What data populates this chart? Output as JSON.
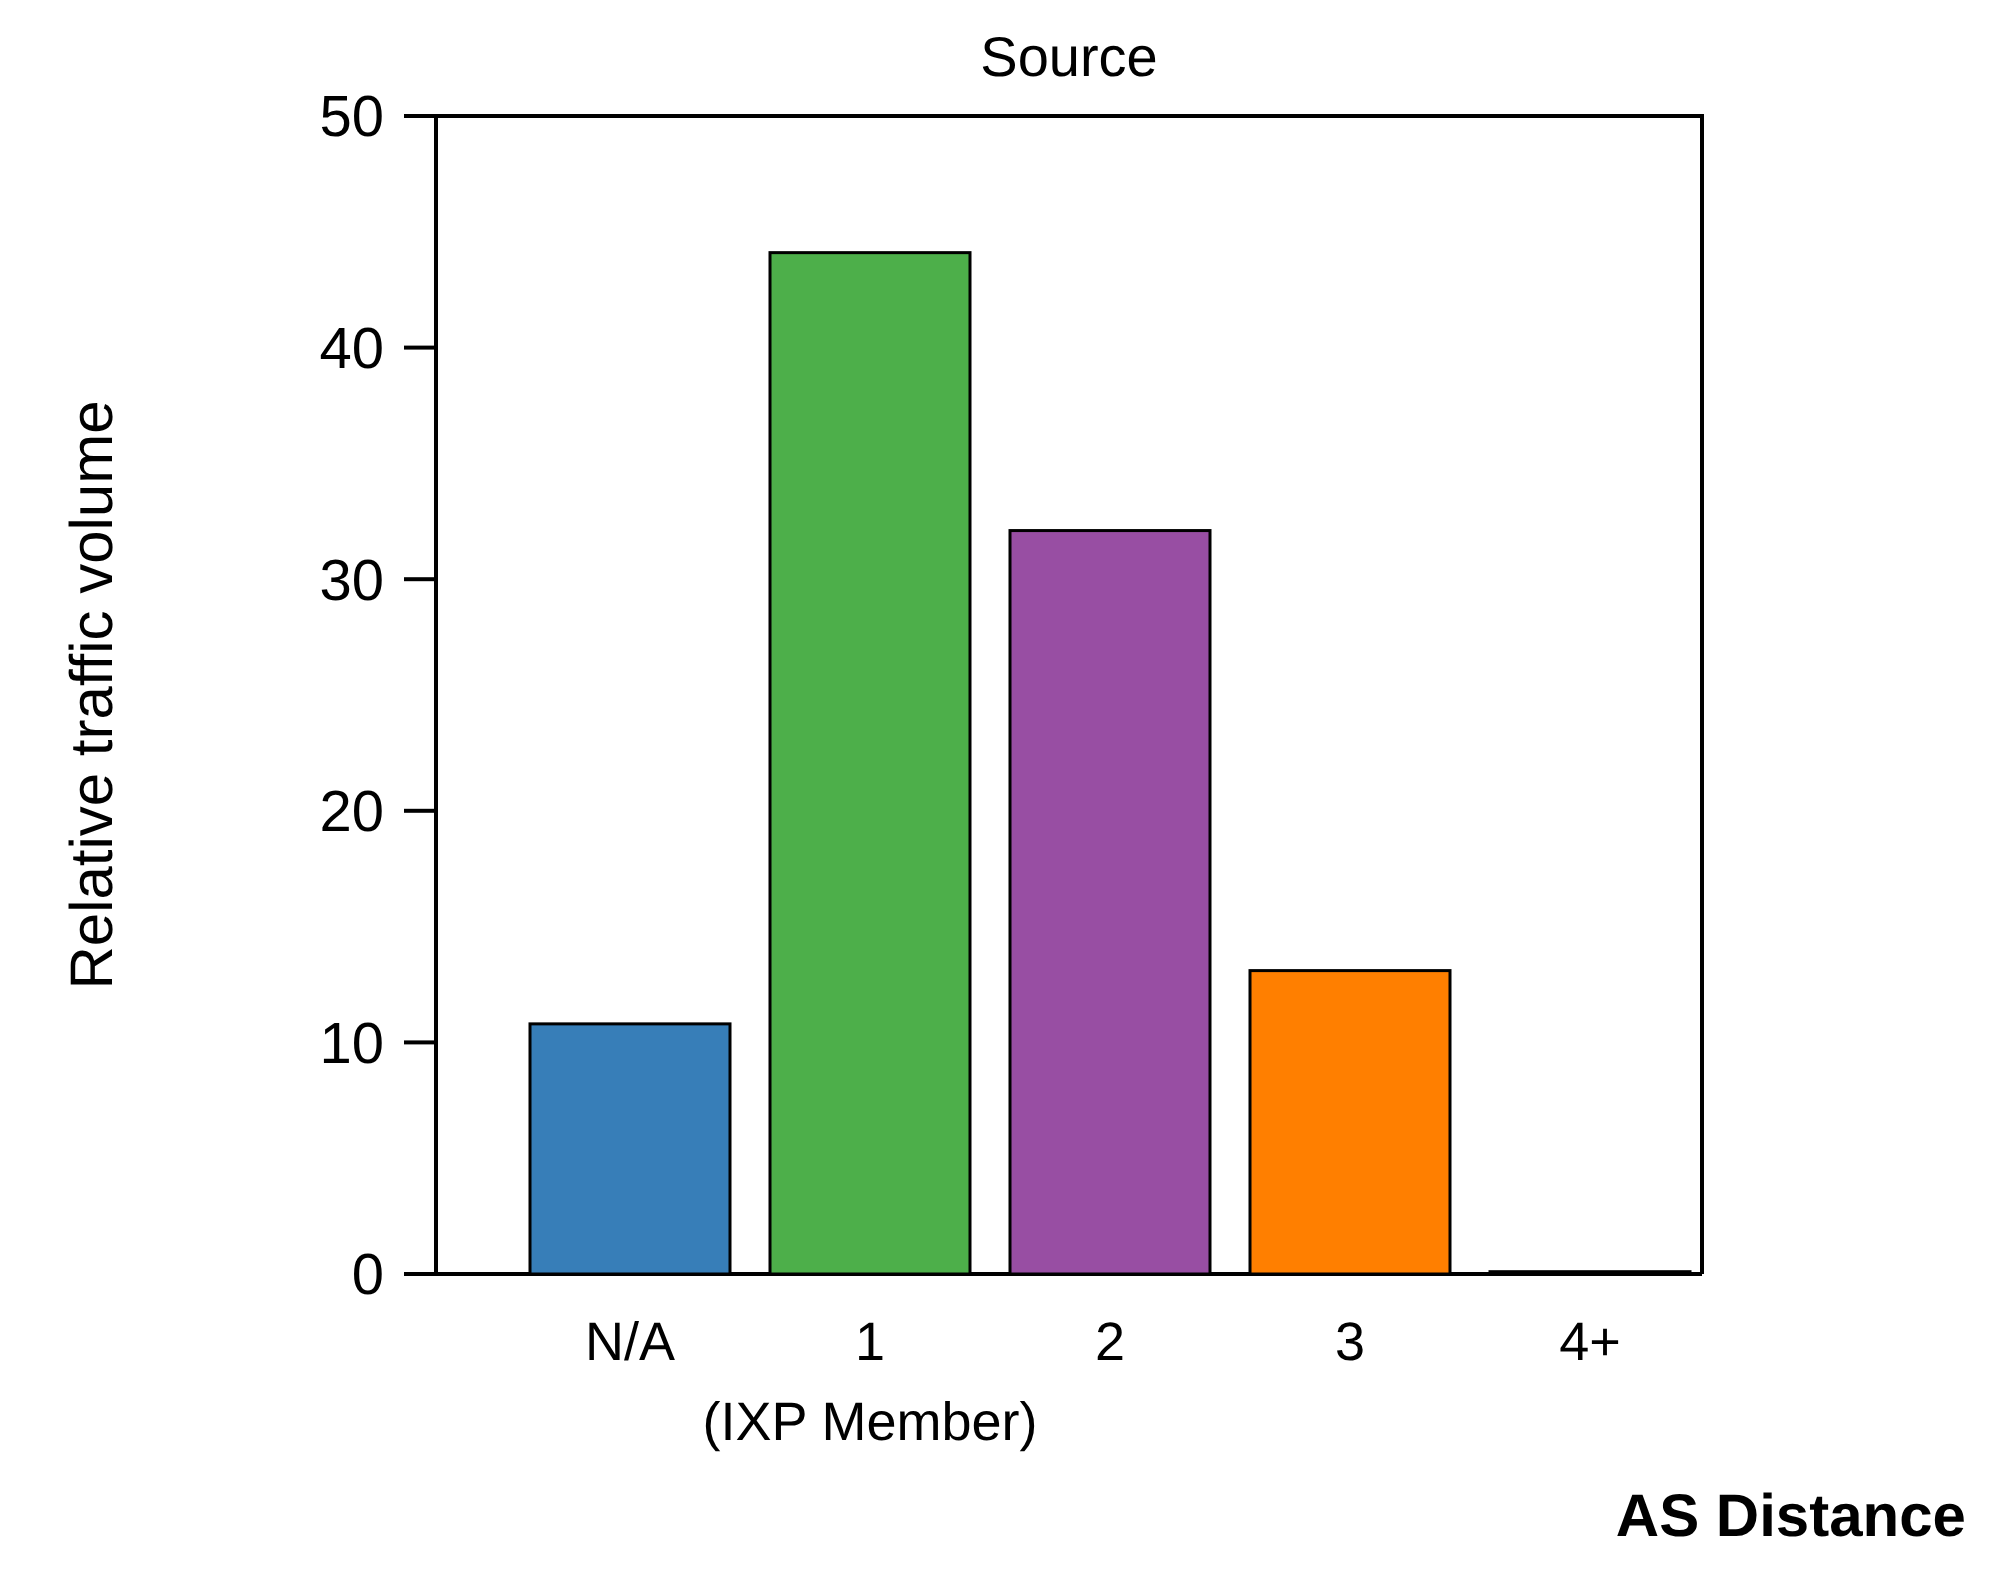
{
  "chart_data": {
    "type": "bar",
    "title": "Source",
    "xlabel": "AS Distance",
    "ylabel": "Relative traffic volume",
    "categories": [
      "N/A",
      "1\n(IXP Member)",
      "2",
      "3",
      "4+"
    ],
    "values": [
      10.8,
      44.1,
      32.1,
      13.1,
      0.1
    ],
    "colors": [
      "#377eb8",
      "#4daf4a",
      "#984ea3",
      "#ff7f00",
      "#a65628"
    ],
    "ylim": [
      0,
      50
    ],
    "yticks": [
      0,
      10,
      20,
      30,
      40,
      50
    ],
    "grid": false
  }
}
